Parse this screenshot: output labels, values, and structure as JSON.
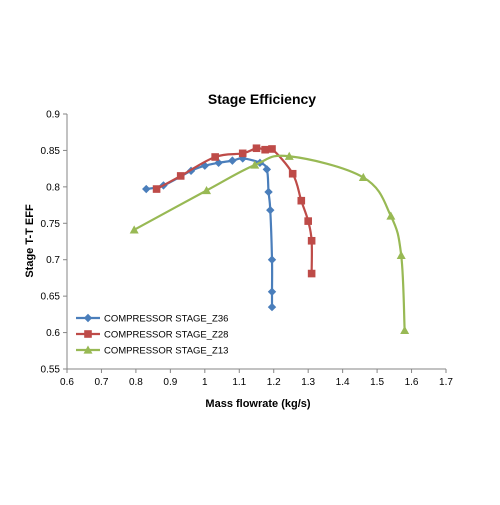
{
  "chart_data": {
    "type": "scatter",
    "title": "Stage Efficiency",
    "xlabel": "Mass flowrate (kg/s)",
    "ylabel": "Stage T-T EFF",
    "xlim": [
      0.6,
      1.7
    ],
    "ylim": [
      0.55,
      0.9
    ],
    "xticks": [
      "0.6",
      "0.7",
      "0.8",
      "0.9",
      "1",
      "1.1",
      "1.2",
      "1.3",
      "1.4",
      "1.5",
      "1.6",
      "1.7"
    ],
    "yticks": [
      "0.55",
      "0.6",
      "0.65",
      "0.7",
      "0.75",
      "0.8",
      "0.85",
      "0.9"
    ],
    "grid": false,
    "legend_position": "bottom-left",
    "smooth_lines": true,
    "series": [
      {
        "name": "COMPRESSOR STAGE_Z36",
        "color": "#4A7EBB",
        "marker": "diamond",
        "x": [
          0.83,
          0.88,
          0.96,
          1.0,
          1.04,
          1.08,
          1.11,
          1.16,
          1.18,
          1.185,
          1.19,
          1.195,
          1.195,
          1.195
        ],
        "y": [
          0.797,
          0.802,
          0.822,
          0.829,
          0.833,
          0.836,
          0.839,
          0.833,
          0.824,
          0.793,
          0.768,
          0.7,
          0.656,
          0.635
        ]
      },
      {
        "name": "COMPRESSOR STAGE_Z28",
        "color": "#BE4B48",
        "marker": "square",
        "x": [
          0.86,
          0.93,
          1.03,
          1.11,
          1.15,
          1.175,
          1.195,
          1.255,
          1.28,
          1.3,
          1.31,
          1.31
        ],
        "y": [
          0.797,
          0.815,
          0.841,
          0.846,
          0.853,
          0.851,
          0.852,
          0.818,
          0.781,
          0.753,
          0.726,
          0.681
        ]
      },
      {
        "name": "COMPRESSOR STAGE_Z13",
        "color": "#98B954",
        "marker": "triangle",
        "x": [
          0.795,
          1.005,
          1.145,
          1.245,
          1.46,
          1.54,
          1.57,
          1.58
        ],
        "y": [
          0.741,
          0.795,
          0.83,
          0.842,
          0.813,
          0.76,
          0.706,
          0.603
        ]
      }
    ]
  }
}
